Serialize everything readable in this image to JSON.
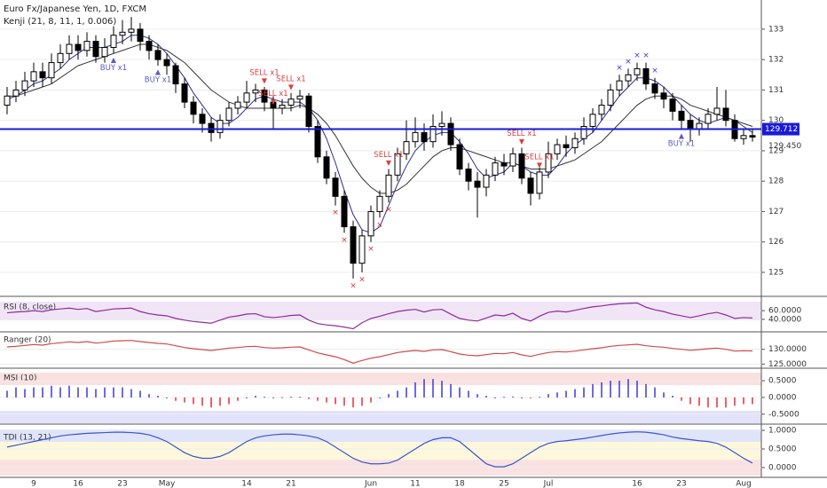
{
  "chart_data": [
    {
      "type": "candlestick",
      "title": "Euro Fx/Japanese Yen, 1D, FXCM",
      "subtitle": "Kenji (21, 8, 11, 1, 0.006)",
      "categories": [
        null,
        null,
        null,
        "9",
        null,
        null,
        null,
        null,
        "16",
        null,
        null,
        null,
        null,
        "23",
        null,
        null,
        null,
        null,
        "May",
        null,
        null,
        null,
        null,
        null,
        null,
        null,
        null,
        "14",
        null,
        null,
        null,
        null,
        "21",
        null,
        null,
        null,
        null,
        null,
        null,
        null,
        null,
        "Jun",
        null,
        null,
        null,
        null,
        "11",
        null,
        null,
        null,
        null,
        "18",
        null,
        null,
        null,
        null,
        "25",
        null,
        null,
        null,
        null,
        "Jul",
        null,
        null,
        null,
        null,
        null,
        null,
        null,
        null,
        null,
        "16",
        null,
        null,
        null,
        null,
        "23",
        null,
        null,
        null,
        null,
        null,
        null,
        "Aug",
        null
      ],
      "open": [
        130.5,
        130.8,
        131.0,
        131.3,
        131.6,
        131.4,
        131.9,
        132.2,
        132.5,
        132.3,
        132.6,
        132.1,
        132.4,
        132.8,
        132.9,
        133.0,
        132.6,
        132.3,
        132.0,
        131.8,
        131.2,
        130.6,
        130.2,
        129.9,
        129.6,
        130.0,
        130.4,
        130.6,
        130.9,
        131.0,
        130.6,
        130.4,
        130.5,
        130.7,
        130.8,
        129.8,
        128.8,
        128.1,
        127.5,
        126.5,
        125.3,
        126.2,
        127.0,
        127.5,
        128.2,
        128.9,
        129.3,
        129.6,
        129.3,
        129.8,
        129.9,
        129.2,
        128.4,
        128.0,
        127.8,
        128.2,
        128.6,
        128.5,
        128.9,
        128.1,
        127.6,
        128.3,
        128.9,
        129.2,
        129.1,
        129.4,
        129.8,
        130.2,
        130.5,
        131.0,
        131.3,
        131.5,
        131.7,
        131.2,
        130.9,
        130.7,
        130.3,
        130.0,
        129.7,
        129.9,
        130.2,
        130.4,
        130.0,
        129.4,
        129.5
      ],
      "high": [
        131.1,
        131.3,
        131.6,
        131.9,
        131.9,
        132.2,
        132.5,
        132.8,
        132.8,
        132.9,
        132.8,
        132.7,
        133.1,
        133.3,
        133.4,
        133.2,
        132.8,
        132.5,
        132.2,
        131.9,
        131.4,
        130.8,
        130.4,
        130.1,
        130.2,
        130.6,
        130.8,
        131.3,
        131.2,
        131.1,
        130.8,
        130.7,
        130.9,
        131.0,
        130.9,
        130.0,
        129.0,
        128.3,
        127.7,
        126.7,
        126.4,
        127.2,
        127.7,
        128.4,
        129.1,
        130.0,
        130.1,
        129.9,
        130.2,
        130.3,
        130.1,
        129.4,
        128.6,
        128.3,
        128.4,
        128.8,
        128.9,
        129.1,
        129.1,
        128.3,
        128.5,
        129.3,
        129.4,
        129.5,
        129.6,
        130.1,
        130.4,
        130.7,
        131.2,
        131.5,
        131.7,
        131.9,
        131.9,
        131.4,
        131.1,
        130.9,
        130.5,
        130.2,
        130.1,
        130.4,
        131.1,
        131.0,
        130.2,
        129.7,
        129.7
      ],
      "low": [
        130.2,
        130.6,
        130.8,
        131.1,
        131.1,
        131.2,
        131.7,
        132.0,
        132.0,
        132.1,
        131.9,
        131.9,
        132.2,
        132.5,
        132.6,
        132.3,
        132.0,
        131.8,
        131.5,
        130.9,
        130.4,
        129.9,
        129.6,
        129.3,
        129.4,
        129.8,
        130.2,
        130.4,
        130.6,
        130.3,
        129.7,
        130.2,
        130.3,
        130.4,
        129.6,
        128.6,
        127.9,
        127.2,
        126.3,
        124.8,
        125.0,
        126.0,
        126.8,
        127.3,
        128.0,
        128.7,
        129.1,
        129.0,
        129.1,
        129.5,
        129.0,
        128.2,
        127.7,
        126.8,
        127.5,
        128.0,
        128.2,
        128.3,
        127.9,
        127.2,
        127.4,
        128.1,
        128.7,
        128.8,
        128.9,
        129.2,
        129.6,
        130.0,
        130.3,
        130.8,
        131.1,
        131.3,
        131.0,
        130.7,
        130.4,
        130.0,
        129.7,
        129.3,
        129.5,
        129.7,
        130.0,
        129.8,
        129.3,
        129.2,
        129.3
      ],
      "close": [
        130.8,
        131.0,
        131.3,
        131.6,
        131.4,
        131.9,
        132.2,
        132.5,
        132.3,
        132.6,
        132.1,
        132.4,
        132.8,
        132.9,
        133.0,
        132.6,
        132.3,
        132.0,
        131.8,
        131.2,
        130.6,
        130.2,
        129.9,
        129.6,
        130.0,
        130.4,
        130.6,
        130.9,
        131.0,
        130.6,
        130.4,
        130.5,
        130.7,
        130.8,
        129.8,
        128.8,
        128.1,
        127.5,
        126.5,
        125.3,
        126.2,
        127.0,
        127.5,
        128.2,
        128.9,
        129.3,
        129.6,
        129.3,
        129.8,
        129.9,
        129.2,
        128.4,
        128.0,
        127.8,
        128.2,
        128.6,
        128.5,
        128.9,
        128.1,
        127.6,
        128.3,
        128.9,
        129.2,
        129.1,
        129.4,
        129.8,
        130.2,
        130.5,
        131.0,
        131.3,
        131.5,
        131.7,
        131.2,
        130.9,
        130.7,
        130.3,
        130.0,
        129.7,
        129.9,
        130.2,
        130.4,
        130.0,
        129.4,
        129.5,
        129.45
      ],
      "lines": [
        {
          "color": "#2b2f87",
          "values": [
            130.7,
            130.8,
            131.0,
            131.2,
            131.3,
            131.5,
            131.7,
            132.0,
            132.2,
            132.4,
            132.4,
            132.4,
            132.5,
            132.6,
            132.8,
            132.8,
            132.7,
            132.5,
            132.2,
            131.8,
            131.4,
            130.9,
            130.5,
            130.1,
            129.9,
            129.9,
            130.1,
            130.4,
            130.7,
            130.8,
            130.7,
            130.6,
            130.6,
            130.6,
            130.4,
            130.0,
            129.4,
            128.6,
            127.7,
            126.9,
            126.4,
            126.3,
            126.5,
            127.2,
            127.9,
            128.5,
            129.0,
            129.3,
            129.5,
            129.6,
            129.6,
            129.3,
            128.9,
            128.4,
            128.1,
            128.2,
            128.3,
            128.6,
            128.5,
            128.3,
            128.2,
            128.2,
            128.5,
            128.9,
            129.2,
            129.4,
            129.6,
            130.0,
            130.4,
            130.8,
            131.1,
            131.4,
            131.4,
            131.3,
            131.1,
            130.8,
            130.5,
            130.2,
            130.0,
            129.9,
            130.0,
            130.1,
            130.0,
            129.8,
            129.6
          ]
        },
        {
          "color": "#333333",
          "values": [
            130.8,
            130.8,
            130.9,
            131.0,
            131.1,
            131.2,
            131.4,
            131.6,
            131.8,
            131.9,
            132.0,
            132.1,
            132.2,
            132.3,
            132.4,
            132.5,
            132.5,
            132.4,
            132.3,
            132.1,
            131.9,
            131.6,
            131.3,
            131.0,
            130.8,
            130.6,
            130.5,
            130.4,
            130.4,
            130.4,
            130.4,
            130.4,
            130.4,
            130.5,
            130.4,
            130.2,
            129.9,
            129.5,
            129.0,
            128.5,
            128.1,
            127.8,
            127.6,
            127.6,
            127.7,
            127.9,
            128.2,
            128.5,
            128.8,
            129.0,
            129.1,
            129.1,
            129.0,
            128.9,
            128.8,
            128.7,
            128.6,
            128.6,
            128.5,
            128.4,
            128.4,
            128.4,
            128.5,
            128.6,
            128.7,
            128.9,
            129.1,
            129.3,
            129.6,
            129.9,
            130.2,
            130.5,
            130.7,
            130.8,
            130.8,
            130.8,
            130.7,
            130.5,
            130.4,
            130.3,
            130.2,
            130.1,
            130.0,
            129.9,
            129.8
          ]
        }
      ],
      "signals": [
        "BUY x1",
        "BUY x1",
        "SELL x1",
        "SELL x1",
        "SELL x1",
        "SELL x1",
        "SELL x1",
        "SELL x1",
        "BUY x1"
      ],
      "price_line": 129.712,
      "price_line_color": "#1a1ad6",
      "last_price": {
        "value": 129.45,
        "label": "129.450"
      },
      "ylim": [
        124.24,
        133.96
      ],
      "yticks": [
        125,
        126,
        127,
        128,
        129,
        130,
        131,
        132,
        133
      ]
    },
    {
      "type": "line",
      "title": "RSI (8, close)",
      "color": "#8e2a9c",
      "values": [
        55,
        57,
        58,
        60,
        58,
        62,
        64,
        66,
        63,
        65,
        58,
        61,
        64,
        65,
        66,
        58,
        53,
        50,
        48,
        42,
        38,
        35,
        33,
        31,
        38,
        45,
        48,
        52,
        53,
        46,
        44,
        46,
        49,
        50,
        38,
        30,
        27,
        25,
        22,
        18,
        32,
        42,
        47,
        53,
        58,
        61,
        63,
        57,
        62,
        63,
        52,
        42,
        38,
        36,
        43,
        50,
        48,
        54,
        42,
        36,
        47,
        56,
        59,
        57,
        61,
        65,
        69,
        71,
        74,
        76,
        77,
        78,
        68,
        62,
        58,
        52,
        48,
        44,
        48,
        53,
        56,
        50,
        42,
        44,
        43
      ],
      "ylim": [
        15,
        85
      ],
      "yticks": [
        {
          "value": 60,
          "label": "60.0000"
        },
        {
          "value": 40,
          "label": "40.0000"
        }
      ]
    },
    {
      "type": "band",
      "title": "Ranger (20)",
      "color": "#d04a4a",
      "ylim": [
        124.2,
        135.3
      ],
      "yticks": [
        {
          "value": 130,
          "label": "130.0000"
        },
        {
          "value": 125,
          "label": "125.0000"
        }
      ]
    },
    {
      "type": "bar",
      "title": "MSI (10)",
      "color_up": "#3b3bd6",
      "color_down": "#e0303b",
      "values": [
        0.2,
        0.3,
        0.25,
        0.3,
        0.3,
        0.35,
        0.3,
        0.35,
        0.3,
        0.3,
        0.25,
        0.3,
        0.3,
        0.3,
        0.25,
        0.2,
        0.1,
        0.05,
        0,
        -0.1,
        -0.15,
        -0.2,
        -0.25,
        -0.3,
        -0.25,
        -0.2,
        -0.1,
        0,
        0.05,
        0.02,
        0,
        0.01,
        0.02,
        0.02,
        -0.05,
        -0.1,
        -0.15,
        -0.2,
        -0.25,
        -0.3,
        -0.25,
        -0.15,
        0,
        0.1,
        0.2,
        0.3,
        0.45,
        0.55,
        0.55,
        0.5,
        0.4,
        0.3,
        0.2,
        0.1,
        0.05,
        0,
        0.02,
        0.03,
        0,
        -0.02,
        0.02,
        0.1,
        0.15,
        0.2,
        0.25,
        0.3,
        0.4,
        0.45,
        0.5,
        0.5,
        0.55,
        0.5,
        0.4,
        0.3,
        0.15,
        0.05,
        -0.1,
        -0.2,
        -0.25,
        -0.3,
        -0.3,
        -0.3,
        -0.25,
        -0.2,
        -0.2
      ],
      "ylim": [
        -0.77,
        0.82
      ],
      "yticks": [
        {
          "value": 0.5,
          "label": "0.5000"
        },
        {
          "value": 0,
          "label": "0.0000"
        },
        {
          "value": -0.5,
          "label": "-0.5000"
        }
      ]
    },
    {
      "type": "line",
      "title": "TDI (13, 21)",
      "color": "#3a55c8",
      "values": [
        0.55,
        0.6,
        0.65,
        0.7,
        0.75,
        0.8,
        0.85,
        0.88,
        0.9,
        0.92,
        0.93,
        0.94,
        0.95,
        0.95,
        0.94,
        0.92,
        0.88,
        0.8,
        0.7,
        0.55,
        0.4,
        0.3,
        0.25,
        0.25,
        0.3,
        0.4,
        0.55,
        0.7,
        0.8,
        0.85,
        0.88,
        0.9,
        0.9,
        0.88,
        0.85,
        0.8,
        0.7,
        0.55,
        0.4,
        0.25,
        0.15,
        0.1,
        0.1,
        0.12,
        0.2,
        0.35,
        0.5,
        0.65,
        0.75,
        0.8,
        0.8,
        0.7,
        0.5,
        0.3,
        0.1,
        0.02,
        0.02,
        0.1,
        0.25,
        0.4,
        0.55,
        0.65,
        0.7,
        0.72,
        0.75,
        0.78,
        0.82,
        0.86,
        0.9,
        0.93,
        0.95,
        0.96,
        0.95,
        0.92,
        0.88,
        0.82,
        0.78,
        0.75,
        0.72,
        0.7,
        0.65,
        0.55,
        0.4,
        0.25,
        0.12
      ],
      "ylim": [
        -0.24,
        1.12
      ],
      "yticks": [
        {
          "value": 1,
          "label": "1.0000"
        },
        {
          "value": 0.5,
          "label": "0.5000"
        },
        {
          "value": 0,
          "label": "0.0000"
        }
      ]
    }
  ]
}
